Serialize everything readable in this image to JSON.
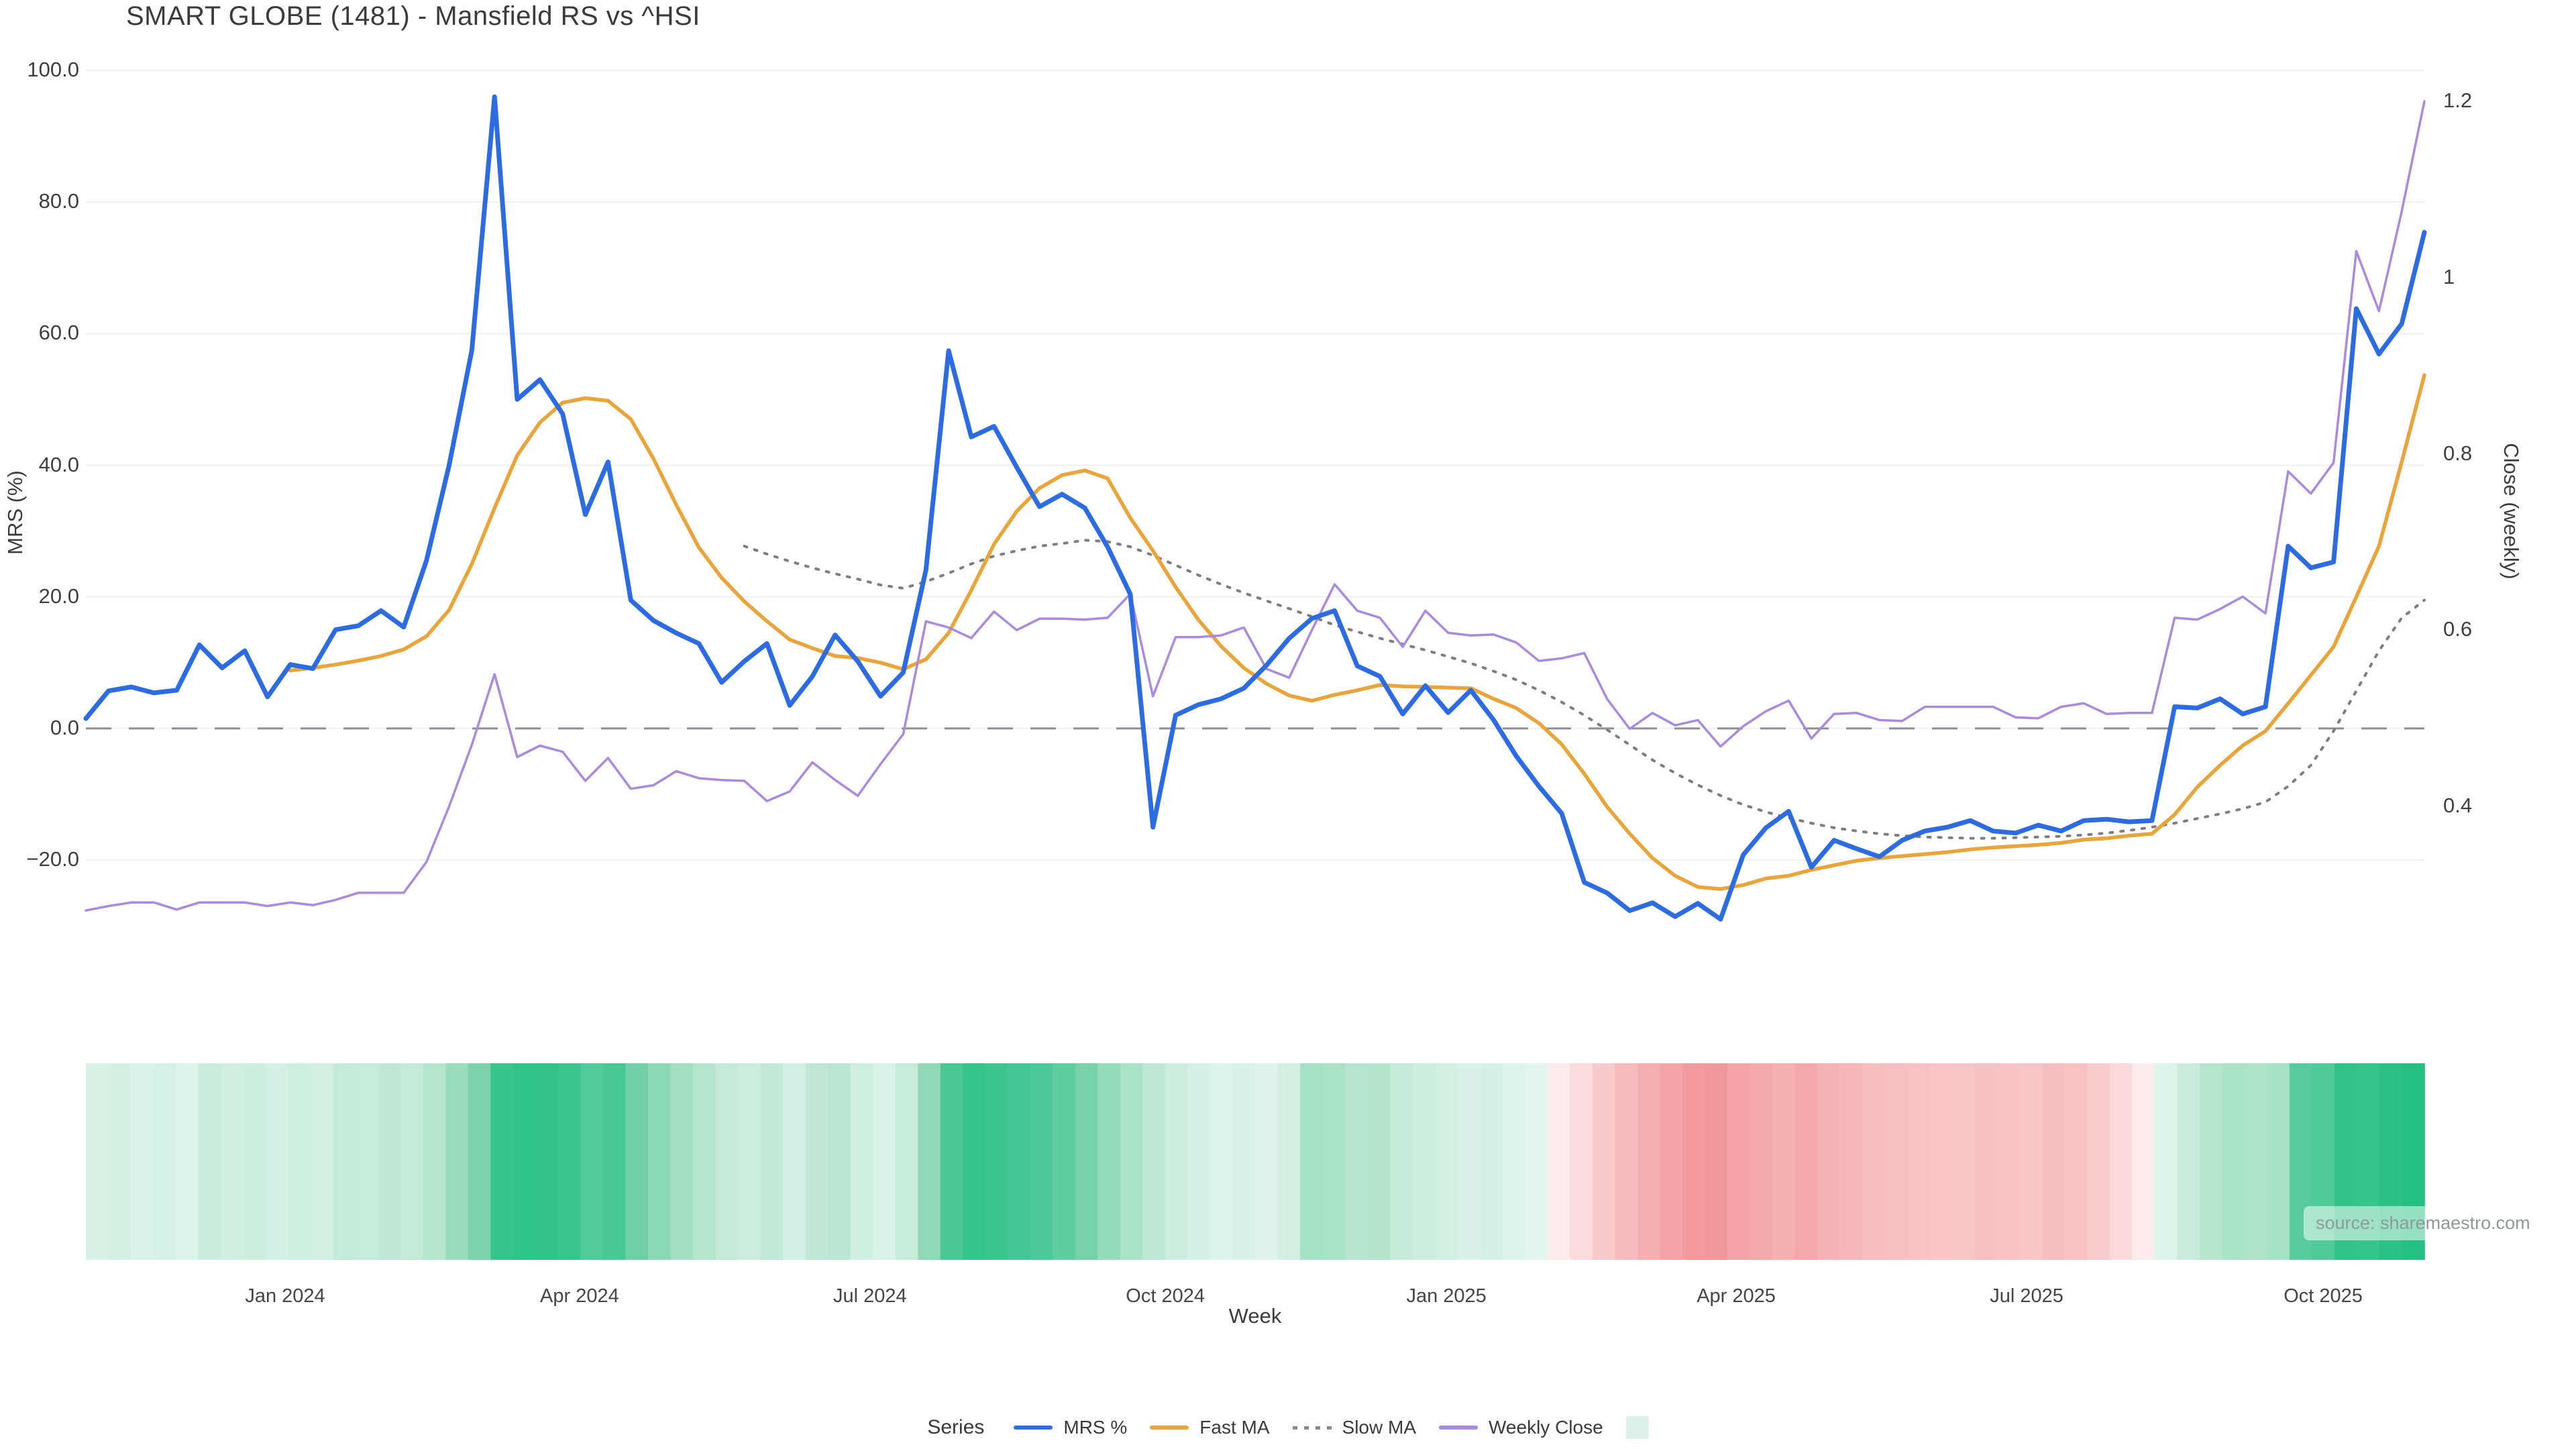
{
  "title": "SMART GLOBE (1481) - Mansfield RS vs ^HSI",
  "source_note": "source: sharemaestro.com",
  "colors": {
    "background": "#ffffff",
    "grid": "#eef0f4",
    "zero_line": "#8f9097",
    "title": "#3b3b3b",
    "tick": "#3f3f3f",
    "mrs_blue": "#2d6ce0",
    "fast_ma_orange": "#e9a53c",
    "slow_ma_gray": "#7e7e7e",
    "weekly_close_purple": "#aa8ade",
    "legend_square_mint": "#ddf3ea"
  },
  "legend": {
    "title": "Series",
    "items": [
      {
        "label": "MRS %",
        "swatch": "line",
        "color": "#2d6ce0"
      },
      {
        "label": "Fast MA",
        "swatch": "line",
        "color": "#e9a53c"
      },
      {
        "label": "Slow MA",
        "swatch": "dotted",
        "color": "#8a8a8a"
      },
      {
        "label": "Weekly Close",
        "swatch": "line",
        "color": "#aa8ade"
      },
      {
        "label": "",
        "swatch": "square",
        "color": "#ddf3ea"
      }
    ]
  },
  "chart_data": {
    "type": "line",
    "title": "SMART GLOBE (1481) - Mansfield RS vs ^HSI",
    "xlabel": "Week",
    "n_points": 104,
    "x_axis": {
      "label": "Week",
      "ticks": [
        {
          "label": "Jan 2024",
          "pos": 0.0852
        },
        {
          "label": "Apr 2024",
          "pos": 0.2111
        },
        {
          "label": "Jul 2024",
          "pos": 0.3353
        },
        {
          "label": "Oct 2024",
          "pos": 0.4616
        },
        {
          "label": "Jan 2025",
          "pos": 0.5818
        },
        {
          "label": "Apr 2025",
          "pos": 0.7057
        },
        {
          "label": "Jul 2025",
          "pos": 0.8299
        },
        {
          "label": "Oct 2025",
          "pos": 0.9567
        }
      ]
    },
    "left_axis": {
      "label": "MRS (%)",
      "ticks": [
        {
          "label": "100.0",
          "value": 100
        },
        {
          "label": "80.0",
          "value": 80
        },
        {
          "label": "60.0",
          "value": 60
        },
        {
          "label": "40.0",
          "value": 40
        },
        {
          "label": "20.0",
          "value": 20
        },
        {
          "label": "0.0",
          "value": 0
        },
        {
          "label": "−20.0",
          "value": -20
        }
      ],
      "zero_dashed_line": true
    },
    "right_axis": {
      "label": "Close (weekly)",
      "ticks": [
        {
          "label": "1.2",
          "value": 1.2
        },
        {
          "label": "1",
          "value": 1.0
        },
        {
          "label": "0.8",
          "value": 0.8
        },
        {
          "label": "0.6",
          "value": 0.6
        },
        {
          "label": "0.4",
          "value": 0.4
        }
      ],
      "left_zero_equiv": 0.4885,
      "per_left_unit": 0.007465
    },
    "series": [
      {
        "name": "Slow MA",
        "axis": "left",
        "color": "#7e7e7e",
        "width": 4,
        "dash": "4 12",
        "values": [
          null,
          null,
          null,
          null,
          null,
          null,
          null,
          null,
          null,
          null,
          null,
          null,
          null,
          null,
          null,
          null,
          null,
          null,
          null,
          null,
          null,
          null,
          null,
          null,
          null,
          null,
          null,
          null,
          null,
          27.7,
          26.5,
          25.4,
          24.4,
          23.5,
          22.7,
          21.8,
          21.3,
          22.3,
          23.6,
          25.0,
          26.2,
          27.0,
          27.7,
          28.1,
          28.6,
          28.4,
          27.6,
          26.3,
          24.8,
          23.3,
          21.9,
          20.6,
          19.4,
          18.2,
          17.0,
          15.7,
          14.7,
          13.7,
          12.8,
          11.9,
          10.9,
          9.9,
          8.7,
          7.4,
          5.8,
          4.0,
          2.0,
          -0.2,
          -2.5,
          -4.8,
          -6.8,
          -8.6,
          -10.2,
          -11.6,
          -12.7,
          -13.6,
          -14.4,
          -15.1,
          -15.6,
          -16.0,
          -16.3,
          -16.5,
          -16.6,
          -16.7,
          -16.7,
          -16.6,
          -16.5,
          -16.4,
          -16.2,
          -15.9,
          -15.5,
          -15.0,
          -14.4,
          -13.7,
          -13.0,
          -12.2,
          -11.2,
          -8.8,
          -5.6,
          -0.4,
          5.7,
          11.8,
          16.8,
          19.5
        ]
      },
      {
        "name": "Fast MA",
        "axis": "left",
        "color": "#e9a53c",
        "width": 5.5,
        "values": [
          null,
          null,
          null,
          null,
          null,
          null,
          null,
          null,
          null,
          8.8,
          9.2,
          9.7,
          10.3,
          11.0,
          12.0,
          14.0,
          18.0,
          25.0,
          33.5,
          41.5,
          46.5,
          49.5,
          50.2,
          49.8,
          47.0,
          41.0,
          34.0,
          27.5,
          22.9,
          19.3,
          16.3,
          13.5,
          12.2,
          11.0,
          10.7,
          10.0,
          9.0,
          10.5,
          14.5,
          21.0,
          28.0,
          33.0,
          36.5,
          38.5,
          39.2,
          38.0,
          32.0,
          27.0,
          21.5,
          16.5,
          12.5,
          9.2,
          6.8,
          5.0,
          4.2,
          5.1,
          5.8,
          6.6,
          6.4,
          6.3,
          6.2,
          6.1,
          4.5,
          3.1,
          0.8,
          -2.4,
          -6.9,
          -11.9,
          -16.0,
          -19.7,
          -22.4,
          -24.1,
          -24.4,
          -23.8,
          -22.8,
          -22.4,
          -21.5,
          -20.8,
          -20.1,
          -19.7,
          -19.4,
          -19.1,
          -18.8,
          -18.4,
          -18.1,
          -17.9,
          -17.7,
          -17.4,
          -16.9,
          -16.7,
          -16.3,
          -16.0,
          -13.1,
          -8.9,
          -5.6,
          -2.6,
          -0.4,
          3.8,
          8.1,
          12.4,
          20.0,
          27.7,
          40.5,
          53.7
        ]
      },
      {
        "name": "Weekly Close",
        "axis": "right",
        "color": "#aa8ade",
        "width": 3.5,
        "values": [
          0.282,
          0.287,
          0.291,
          0.291,
          0.283,
          0.291,
          0.291,
          0.291,
          0.287,
          0.291,
          0.288,
          0.294,
          0.302,
          0.302,
          0.302,
          0.337,
          0.4,
          0.47,
          0.55,
          0.456,
          0.469,
          0.462,
          0.429,
          0.455,
          0.42,
          0.424,
          0.44,
          0.432,
          0.43,
          0.429,
          0.406,
          0.417,
          0.45,
          0.43,
          0.412,
          0.448,
          0.482,
          0.61,
          0.603,
          0.591,
          0.621,
          0.6,
          0.613,
          0.613,
          0.612,
          0.614,
          0.641,
          0.525,
          0.592,
          0.592,
          0.594,
          0.603,
          0.556,
          0.546,
          0.6,
          0.652,
          0.622,
          0.614,
          0.581,
          0.622,
          0.597,
          0.594,
          0.595,
          0.586,
          0.565,
          0.568,
          0.574,
          0.522,
          0.488,
          0.506,
          0.492,
          0.498,
          0.468,
          0.491,
          0.508,
          0.52,
          0.477,
          0.505,
          0.506,
          0.498,
          0.497,
          0.513,
          0.513,
          0.513,
          0.513,
          0.501,
          0.5,
          0.513,
          0.517,
          0.505,
          0.506,
          0.506,
          0.614,
          0.612,
          0.624,
          0.638,
          0.619,
          0.78,
          0.755,
          0.79,
          1.03,
          0.962,
          1.075,
          1.2
        ]
      },
      {
        "name": "MRS %",
        "axis": "left",
        "color": "#2d6ce0",
        "width": 7,
        "values": [
          1.5,
          5.7,
          6.3,
          5.4,
          5.8,
          12.7,
          9.2,
          11.8,
          4.8,
          9.7,
          9.1,
          15.0,
          15.6,
          17.9,
          15.4,
          25.5,
          40.0,
          57.5,
          96.0,
          50.0,
          53.0,
          47.8,
          32.5,
          40.5,
          19.5,
          16.4,
          14.5,
          12.9,
          7.0,
          10.2,
          12.9,
          3.5,
          7.9,
          14.2,
          10.2,
          4.9,
          8.5,
          24.1,
          57.4,
          44.3,
          45.9,
          39.7,
          33.7,
          35.6,
          33.5,
          27.6,
          20.4,
          -15.0,
          2.0,
          3.6,
          4.5,
          6.1,
          9.6,
          13.7,
          16.7,
          17.9,
          9.5,
          7.9,
          2.2,
          6.5,
          2.4,
          5.8,
          1.3,
          -4.2,
          -8.8,
          -12.9,
          -23.4,
          -25.0,
          -27.7,
          -26.5,
          -28.6,
          -26.6,
          -29.0,
          -19.2,
          -15.1,
          -12.6,
          -21.1,
          -17.0,
          -18.3,
          -19.5,
          -17.0,
          -15.6,
          -15.0,
          -14.0,
          -15.6,
          -15.9,
          -14.7,
          -15.6,
          -14.0,
          -13.8,
          -14.2,
          -14.0,
          3.3,
          3.1,
          4.5,
          2.2,
          3.3,
          27.7,
          24.4,
          25.3,
          63.8,
          56.9,
          61.5,
          75.4
        ]
      }
    ],
    "heatmap": {
      "name": "weekly strength heat strip",
      "colors": [
        "#d8f2e6",
        "#d3f0e3",
        "#daf3e8",
        "#d6f1e6",
        "#dcf4ea",
        "#c9ecdc",
        "#d0efe1",
        "#cceedd",
        "#d5f1e5",
        "#cfefe0",
        "#d1f0e2",
        "#c3ebd7",
        "#c7ecda",
        "#bfe9d4",
        "#c5ebd8",
        "#b4e5cd",
        "#99dcbc",
        "#7dd3ab",
        "#37c48d",
        "#2fc289",
        "#31c38a",
        "#3ac58f",
        "#52cb9b",
        "#48c895",
        "#71d1a6",
        "#8ad8b4",
        "#a3e0c4",
        "#b4e5cd",
        "#c5ebd8",
        "#cbeddc",
        "#c2ead6",
        "#d2f0e3",
        "#c0e9d5",
        "#bae7d1",
        "#cfefe0",
        "#daf3e8",
        "#c8ecda",
        "#8fd9b7",
        "#49c895",
        "#35c48c",
        "#3dc590",
        "#44c794",
        "#4cc998",
        "#5ecd9f",
        "#78d2a9",
        "#94dbba",
        "#a9e2c7",
        "#c0e9d5",
        "#cdeede",
        "#d5f1e5",
        "#dcf4ea",
        "#d8f2e7",
        "#dff5ec",
        "#d2f0e2",
        "#a5e1c5",
        "#a9e2c7",
        "#b6e6cf",
        "#b2e5cc",
        "#c6ebd9",
        "#cceedd",
        "#d2f0e2",
        "#d8f2e7",
        "#d5f1e5",
        "#dcf4ea",
        "#e2f6ee",
        "#fcebeb",
        "#fadcdd",
        "#f8cacb",
        "#f6babc",
        "#f5afb1",
        "#f3a3a6",
        "#f29a9d",
        "#f1989b",
        "#f3a2a5",
        "#f4aaad",
        "#f5b0b2",
        "#f4a8ab",
        "#f5b3b5",
        "#f6b8ba",
        "#f7bdbf",
        "#f7bfc1",
        "#f8c2c3",
        "#f8c4c5",
        "#f8c5c6",
        "#f7c0c2",
        "#f8c3c4",
        "#f8c6c7",
        "#f7bec0",
        "#f8c2c3",
        "#f9cbcc",
        "#fbd9da",
        "#fdecec",
        "#ddf4ea",
        "#c9ecdc",
        "#b7e6cf",
        "#abe3c8",
        "#b0e4ca",
        "#a5e1c4",
        "#58cc9e",
        "#50ca99",
        "#32c38b",
        "#36c48d",
        "#2ac086",
        "#25bf83"
      ]
    },
    "layout": {
      "plot_x0": 128,
      "plot_x1": 3614,
      "y_top": 105,
      "y_bottom": 1282,
      "v_top": 100,
      "v_bottom": -20,
      "strip_top": 1585,
      "strip_bottom": 1878,
      "x_tick_y": 1916
    }
  }
}
